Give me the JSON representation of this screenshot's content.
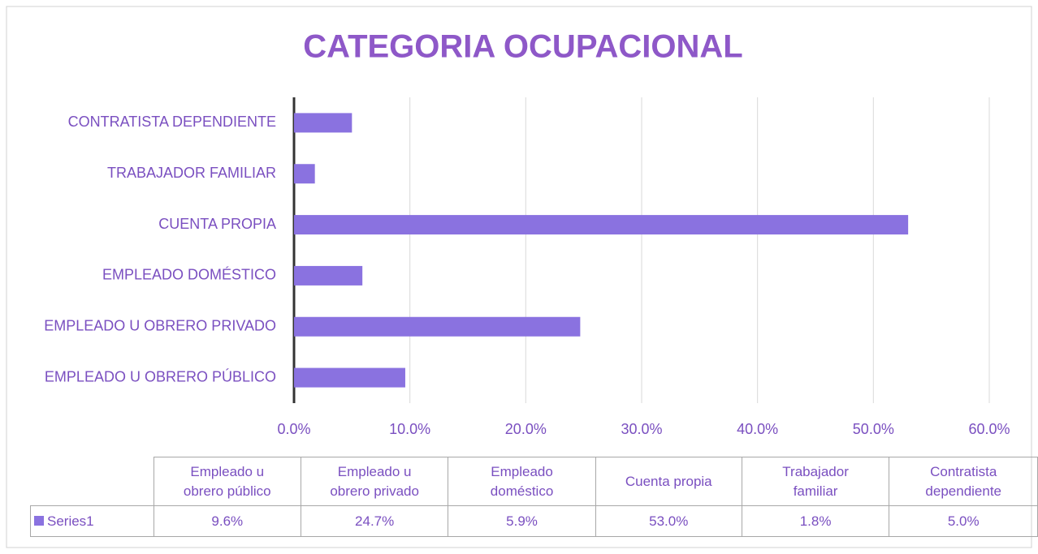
{
  "chart_data": {
    "type": "barh",
    "title": "CATEGORIA OCUPACIONAL",
    "categories": [
      "EMPLEADO U OBRERO PÚBLICO",
      "EMPLEADO U OBRERO PRIVADO",
      "EMPLEADO DOMÉSTICO",
      "CUENTA PROPIA",
      "TRABAJADOR FAMILIAR",
      "CONTRATISTA DEPENDIENTE"
    ],
    "table_headers": [
      "Empleado u obrero público",
      "Empleado u obrero privado",
      "Empleado doméstico",
      "Cuenta propia",
      "Trabajador familiar",
      "Contratista dependiente"
    ],
    "series": [
      {
        "name": "Series1",
        "color": "#8a72e0",
        "values": [
          9.6,
          24.7,
          5.9,
          53.0,
          1.8,
          5.0
        ],
        "value_labels": [
          "9.6%",
          "24.7%",
          "5.9%",
          "53.0%",
          "1.8%",
          "5.0%"
        ]
      }
    ],
    "xlim": [
      0,
      60
    ],
    "xticks": [
      {
        "value": 0,
        "label": "0.0%"
      },
      {
        "value": 10,
        "label": "10.0%"
      },
      {
        "value": 20,
        "label": "20.0%"
      },
      {
        "value": 30,
        "label": "30.0%"
      },
      {
        "value": 40,
        "label": "40.0%"
      },
      {
        "value": 50,
        "label": "50.0%"
      },
      {
        "value": 60,
        "label": "60.0%"
      }
    ],
    "grid": true
  }
}
